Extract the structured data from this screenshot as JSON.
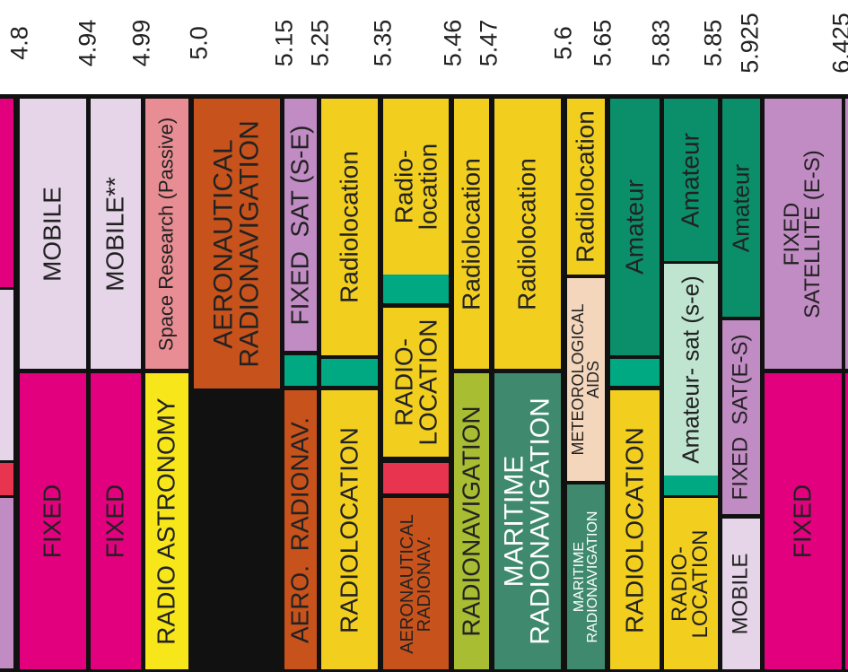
{
  "chart_data": {
    "type": "frequency-allocation",
    "freq_unit": "GHz",
    "frequency_labels": [
      {
        "value": "4.8",
        "pos": 0
      },
      {
        "value": "4.94",
        "pos": 1
      },
      {
        "value": "4.99",
        "pos": 2
      },
      {
        "value": "5.0",
        "pos": 3
      },
      {
        "value": "5.15",
        "pos": 4
      },
      {
        "value": "5.25",
        "pos": 5
      },
      {
        "value": "5.35",
        "pos": 6
      },
      {
        "value": "5.46",
        "pos": 7
      },
      {
        "value": "5.47",
        "pos": 8
      },
      {
        "value": "5.6",
        "pos": 9
      },
      {
        "value": "5.65",
        "pos": 10
      },
      {
        "value": "5.83",
        "pos": 11
      },
      {
        "value": "5.85",
        "pos": 12
      },
      {
        "value": "5.925",
        "pos": 13
      },
      {
        "value": "6.425",
        "pos": 14
      }
    ],
    "bands": [
      {
        "band": "4.8–4.94",
        "services": [
          "MOBILE",
          "FIXED"
        ]
      },
      {
        "band": "4.94–4.99",
        "services": [
          "MOBILE**",
          "FIXED"
        ]
      },
      {
        "band": "4.99–5.0",
        "services": [
          "Space Research (Passive)",
          "RADIO ASTRONOMY"
        ]
      },
      {
        "band": "5.0–5.15",
        "services": [
          "AERONAUTICAL RADIONAVIGATION"
        ]
      },
      {
        "band": "5.15–5.25",
        "services": [
          "FIXED SAT (S-E)",
          "AERO. RADIONAV."
        ]
      },
      {
        "band": "5.25–5.35",
        "services": [
          "Radiolocation",
          "RADIOLOCATION"
        ]
      },
      {
        "band": "5.35–5.46",
        "services": [
          "Radio-location",
          "RADIO-LOCATION",
          "AERONAUTICAL RADIONAV."
        ]
      },
      {
        "band": "5.46–5.47",
        "services": [
          "Radiolocation",
          "RADIONAVIGATION"
        ]
      },
      {
        "band": "5.47–5.6",
        "services": [
          "Radiolocation",
          "MARITIME RADIONAVIGATION"
        ]
      },
      {
        "band": "5.6–5.65",
        "services": [
          "Radiolocation",
          "METEOROLOGICAL AIDS",
          "MARITIME RADIONAVIGATION"
        ]
      },
      {
        "band": "5.65–5.83",
        "services": [
          "Amateur",
          "RADIOLOCATION"
        ]
      },
      {
        "band": "5.83–5.85",
        "services": [
          "Amateur",
          "Amateur- sat (s-e)",
          "RADIO-LOCATION"
        ]
      },
      {
        "band": "5.85–5.925",
        "services": [
          "Amateur",
          "FIXED SAT(E-S)",
          "MOBILE"
        ]
      },
      {
        "band": "5.925–6.425",
        "services": [
          "FIXED SATELLITE (E-S)",
          "FIXED"
        ]
      }
    ],
    "cells": [
      {
        "id": "c-4p8-top",
        "label": "",
        "color": "#e3007e",
        "fg": "#222"
      },
      {
        "id": "c-4p8-mid",
        "label": "",
        "color": "#e6d4e8",
        "fg": "#222"
      },
      {
        "id": "c-4p8-red",
        "label": "",
        "color": "#e8344e",
        "fg": "#222"
      },
      {
        "id": "c-4p8-bot",
        "label": "",
        "color": "#c18bc4",
        "fg": "#222"
      },
      {
        "id": "c-mobile",
        "label": "MOBILE",
        "color": "#e6d4e8",
        "fg": "#222"
      },
      {
        "id": "c-fixed1",
        "label": "FIXED",
        "color": "#e3007e",
        "fg": "#222"
      },
      {
        "id": "c-mobile2",
        "label": "MOBILE**",
        "color": "#e6d4e8",
        "fg": "#222"
      },
      {
        "id": "c-fixed2",
        "label": "FIXED",
        "color": "#e3007e",
        "fg": "#222"
      },
      {
        "id": "c-spaceres",
        "label": "Space Research (Passive)",
        "color": "#e88d93",
        "fg": "#222"
      },
      {
        "id": "c-radioastro",
        "label": "RADIO ASTRONOMY",
        "color": "#f6e61a",
        "fg": "#222"
      },
      {
        "id": "c-aeronav",
        "label": "AERONAUTICAL\nRADIONAVIGATION",
        "color": "#c8521b",
        "fg": "#222"
      },
      {
        "id": "c-fixedsat",
        "label": "FIXED  SAT (S-E)",
        "color": "#c18bc4",
        "fg": "#222"
      },
      {
        "id": "c-green1",
        "label": "",
        "color": "#00a982",
        "fg": "#222"
      },
      {
        "id": "c-aeroradio",
        "label": "AERO.  RADIONAV.",
        "color": "#c8521b",
        "fg": "#222"
      },
      {
        "id": "c-radloc1",
        "label": "Radiolocation",
        "color": "#f2cf1f",
        "fg": "#222"
      },
      {
        "id": "c-green2",
        "label": "",
        "color": "#00a982",
        "fg": "#222"
      },
      {
        "id": "c-RADLOC1",
        "label": "RADIOLOCATION",
        "color": "#f2cf1f",
        "fg": "#222"
      },
      {
        "id": "c-radloc2",
        "label": "Radio-\nlocation",
        "color": "#f2cf1f",
        "fg": "#222"
      },
      {
        "id": "c-green3",
        "label": "",
        "color": "#00a982",
        "fg": "#222"
      },
      {
        "id": "c-RADLOC2",
        "label": "RADIO-\nLOCATION",
        "color": "#f2cf1f",
        "fg": "#222"
      },
      {
        "id": "c-red2",
        "label": "",
        "color": "#e8344e",
        "fg": "#222"
      },
      {
        "id": "c-aeroradio2",
        "label": "AERONAUTICAL\nRADIONAV.",
        "color": "#c8521b",
        "fg": "#222"
      },
      {
        "id": "c-radloc3",
        "label": "Radiolocation",
        "color": "#f2cf1f",
        "fg": "#222"
      },
      {
        "id": "c-radionav",
        "label": "RADIONAVIGATION",
        "color": "#a9bd32",
        "fg": "#222"
      },
      {
        "id": "c-radloc4",
        "label": "Radiolocation",
        "color": "#f2cf1f",
        "fg": "#222"
      },
      {
        "id": "c-maritime",
        "label": "MARITIME\nRADIONAVIGATION",
        "color": "#3f8a6e",
        "fg": "#ffffff"
      },
      {
        "id": "c-radloc5",
        "label": "Radiolocation",
        "color": "#f2cf1f",
        "fg": "#222"
      },
      {
        "id": "c-meteo",
        "label": "METEOROLOGICAL\nAIDS",
        "color": "#f4d6bc",
        "fg": "#222"
      },
      {
        "id": "c-maritime2",
        "label": "MARITIME\nRADIONAVIGATION",
        "color": "#3f8a6e",
        "fg": "#ffffff"
      },
      {
        "id": "c-amateur1",
        "label": "Amateur",
        "color": "#0a8f6a",
        "fg": "#222"
      },
      {
        "id": "c-green4",
        "label": "",
        "color": "#00a982",
        "fg": "#222"
      },
      {
        "id": "c-RADLOC3",
        "label": "RADIOLOCATION",
        "color": "#f2cf1f",
        "fg": "#222"
      },
      {
        "id": "c-amateur2",
        "label": "Amateur",
        "color": "#0a8f6a",
        "fg": "#222"
      },
      {
        "id": "c-amsat",
        "label": "Amateur- sat (s-e)",
        "color": "#bfe4d0",
        "fg": "#222"
      },
      {
        "id": "c-green5",
        "label": "",
        "color": "#00a982",
        "fg": "#222"
      },
      {
        "id": "c-RADLOC4",
        "label": "RADIO-\nLOCATION",
        "color": "#f2cf1f",
        "fg": "#222"
      },
      {
        "id": "c-amateur3",
        "label": "Amateur",
        "color": "#0a8f6a",
        "fg": "#222"
      },
      {
        "id": "c-fixedsat2",
        "label": "FIXED  SAT(E-S)",
        "color": "#c18bc4",
        "fg": "#222"
      },
      {
        "id": "c-mobile3",
        "label": "MOBILE",
        "color": "#e6d4e8",
        "fg": "#222"
      },
      {
        "id": "c-fss",
        "label": "FIXED\nSATELLITE (E-S)",
        "color": "#c18bc4",
        "fg": "#222"
      },
      {
        "id": "c-fixed3",
        "label": "FIXED",
        "color": "#e3007e",
        "fg": "#222"
      },
      {
        "id": "c-edge-top",
        "label": "",
        "color": "#c18bc4",
        "fg": "#222"
      },
      {
        "id": "c-edge-bot",
        "label": "",
        "color": "#e3007e",
        "fg": "#222"
      }
    ]
  }
}
